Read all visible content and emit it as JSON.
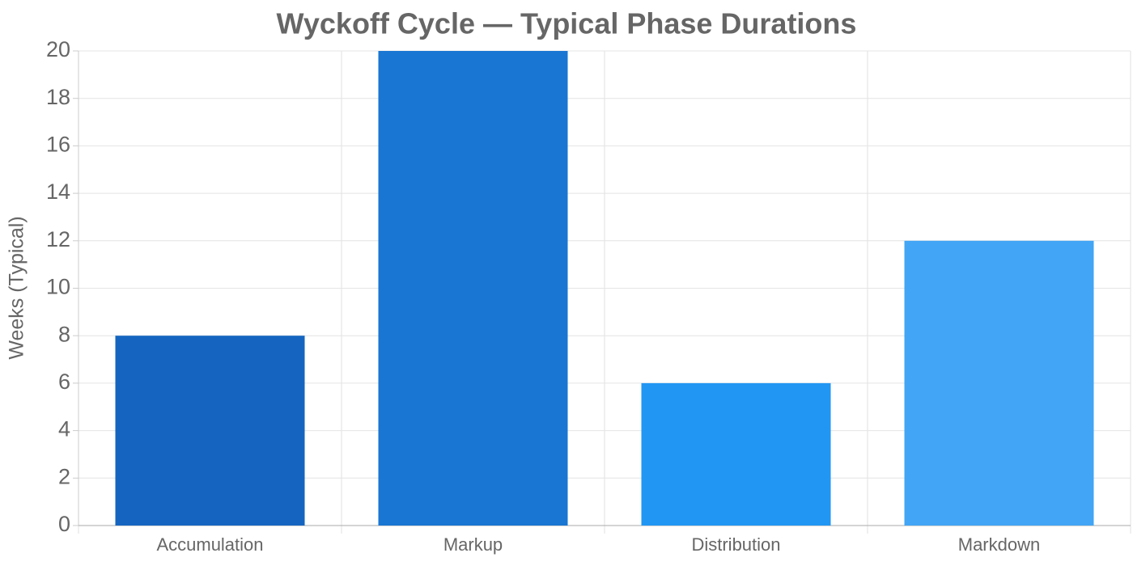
{
  "chart_data": {
    "type": "bar",
    "title": "Wyckoff Cycle — Typical Phase Durations",
    "y_label": "Weeks (Typical)",
    "categories": [
      "Accumulation",
      "Markup",
      "Distribution",
      "Markdown"
    ],
    "values": [
      8,
      20,
      6,
      12
    ],
    "colors": [
      "#1565c0",
      "#1976d2",
      "#2196f3",
      "#42a5f5"
    ],
    "ylim": [
      0,
      20
    ],
    "yticks": [
      0,
      2,
      4,
      6,
      8,
      10,
      12,
      14,
      16,
      18,
      20
    ],
    "grid": true
  }
}
